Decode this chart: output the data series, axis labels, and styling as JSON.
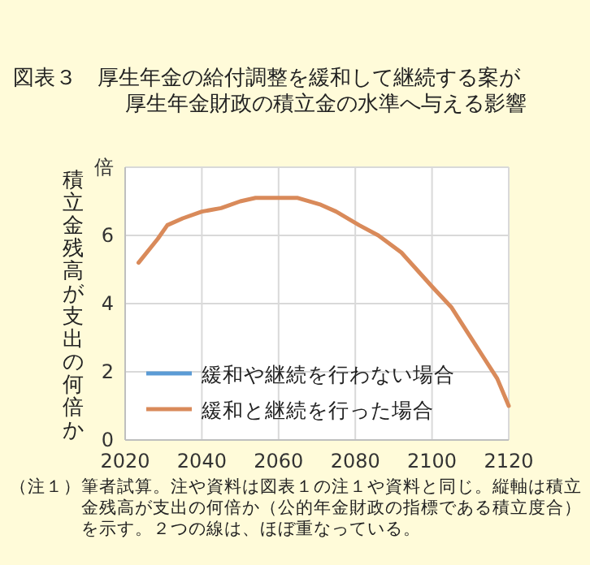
{
  "chart_data": {
    "type": "line",
    "title": "図表３　厚生年金の給付調整を緩和して継続する案が厚生年金財政の積立金の水準へ与える影響",
    "ylabel": "積立金残高が支出の何倍か",
    "x": [
      2023.5,
      2028.5,
      2031,
      2035,
      2040,
      2045,
      2050,
      2054,
      2060,
      2065,
      2071,
      2075,
      2081,
      2086,
      2092,
      2096,
      2100,
      2105,
      2109,
      2113,
      2117,
      2120
    ],
    "series": [
      {
        "name": "緩和や継続を行わない場合",
        "color": "#5b9bd5",
        "values": [
          null,
          null,
          null,
          null,
          null,
          null,
          null,
          null,
          null,
          null,
          null,
          null,
          null,
          null,
          null,
          null,
          null,
          null,
          null,
          null,
          null,
          null
        ]
      },
      {
        "name": "緩和と継続を行った場合",
        "color": "#d98a5a",
        "values": [
          5.2,
          5.9,
          6.3,
          6.5,
          6.7,
          6.8,
          7.0,
          7.1,
          7.1,
          7.1,
          6.9,
          6.7,
          6.3,
          6.0,
          5.5,
          5.0,
          4.5,
          3.9,
          3.2,
          2.5,
          1.8,
          1.0
        ]
      }
    ],
    "xlim": [
      2020,
      2120
    ],
    "xticks": [
      2020,
      2040,
      2060,
      2080,
      2100,
      2120
    ],
    "ylim": [
      0,
      8
    ],
    "yticks": [
      0,
      2,
      4,
      6,
      {
        "value": 8,
        "label": "倍"
      }
    ],
    "grid": true,
    "legend": "bottom left",
    "annotations": [
      "（注１）",
      "筆者試算。注や資料は図表１の注１や資料と同じ。縦軸は積立金残高が支出の何倍か（公的年金財政の指標である積立度合）を示す。２つの線は、ほぼ重なっている。"
    ]
  }
}
